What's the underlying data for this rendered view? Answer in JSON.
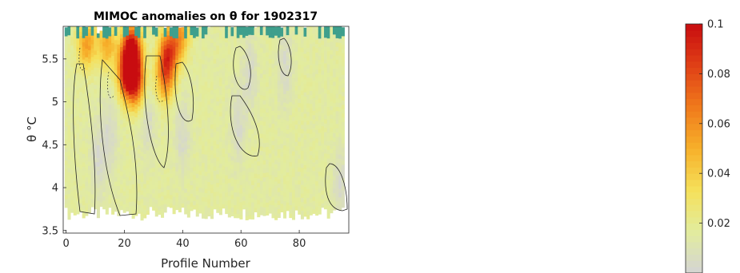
{
  "chart_data": {
    "type": "heatmap",
    "title": "MIMOC anomalies on θ  for 1902317",
    "xlabel": "Profile Number",
    "ylabel": "θ °C",
    "xlim": [
      -1,
      97
    ],
    "ylim": [
      3.47,
      5.88
    ],
    "x_ticks": [
      0,
      20,
      40,
      60,
      80
    ],
    "y_ticks": [
      3.5,
      4,
      4.5,
      5,
      5.5
    ],
    "x_tick_labels": [
      "0",
      "20",
      "40",
      "60",
      "80"
    ],
    "y_tick_labels": [
      "3.5",
      "4",
      "4.5",
      "5",
      "5.5"
    ],
    "colorbar": {
      "min": 0,
      "max": 0.1,
      "ticks": [
        0.02,
        0.04,
        0.06,
        0.08,
        0.1
      ],
      "tick_labels": [
        "0.02",
        "0.04",
        "0.06",
        "0.08",
        "0.1"
      ],
      "colors": [
        "#d4d4d4",
        "#e2ec9e",
        "#f5e05a",
        "#f7b02a",
        "#f07a1c",
        "#e04016",
        "#c80c10"
      ]
    },
    "hotspots": [
      {
        "x": 22.5,
        "y": 5.58,
        "value": 0.095
      },
      {
        "x": 21,
        "y": 5.3,
        "value": 0.075
      },
      {
        "x": 24,
        "y": 5.2,
        "value": 0.06
      },
      {
        "x": 35,
        "y": 5.55,
        "value": 0.06
      },
      {
        "x": 34,
        "y": 5.25,
        "value": 0.045
      },
      {
        "x": 7,
        "y": 5.65,
        "value": 0.04
      },
      {
        "x": 14,
        "y": 5.65,
        "value": 0.035
      },
      {
        "x": 39,
        "y": 5.75,
        "value": 0.04
      }
    ],
    "low_regions": [
      {
        "x": 11,
        "y": 4.3
      },
      {
        "x": 15,
        "y": 4.6
      },
      {
        "x": 28,
        "y": 4.8
      },
      {
        "x": 40,
        "y": 4.6
      },
      {
        "x": 63,
        "y": 5.3
      },
      {
        "x": 59,
        "y": 4.7
      },
      {
        "x": 75,
        "y": 5.4
      },
      {
        "x": 94,
        "y": 4.0
      }
    ]
  }
}
